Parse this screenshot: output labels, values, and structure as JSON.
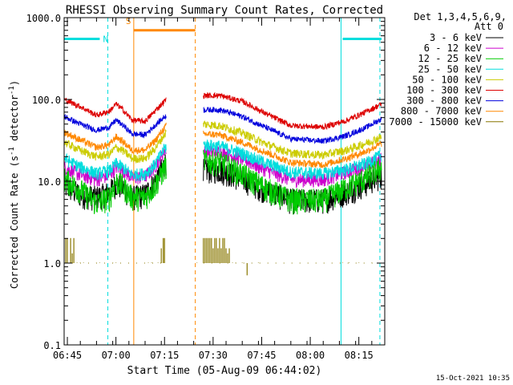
{
  "chart_data": {
    "type": "line",
    "title": "RHESSI Observing Summary Count Rates, Corrected",
    "xlabel": "Start Time (05-Aug-09 06:44:02)",
    "ylabel_main": "Corrected Count Rate (s",
    "ylabel_sup1": "-1",
    "ylabel_mid": " detector",
    "ylabel_sup2": "-1",
    "ylabel_end": ")",
    "yscale": "log",
    "ylim": [
      0.1,
      1000.0
    ],
    "xlim_minutes": [
      0,
      99
    ],
    "x_ticks": [
      {
        "label": "06:45",
        "min": 1
      },
      {
        "label": "07:00",
        "min": 16
      },
      {
        "label": "07:15",
        "min": 31
      },
      {
        "label": "07:30",
        "min": 46
      },
      {
        "label": "07:45",
        "min": 61
      },
      {
        "label": "08:00",
        "min": 76
      },
      {
        "label": "08:15",
        "min": 91
      }
    ],
    "y_ticks": [
      {
        "label": "1000.0",
        "value": 1000
      },
      {
        "label": "100.0",
        "value": 100
      },
      {
        "label": "10.0",
        "value": 10
      },
      {
        "label": "1.0",
        "value": 1
      },
      {
        "label": "0.1",
        "value": 0.1
      }
    ],
    "legend": {
      "header1": "Det 1,3,4,5,6,9,",
      "header2": "Att 0",
      "placement": "right"
    },
    "segments": [
      [
        0,
        31.5
      ],
      [
        43,
        98
      ]
    ],
    "series": [
      {
        "name": "3 - 6 keV",
        "color": "#000000",
        "noise": 0.35,
        "points": [
          [
            0,
            9
          ],
          [
            5,
            7
          ],
          [
            10,
            6.5
          ],
          [
            14,
            7.5
          ],
          [
            16,
            9.5
          ],
          [
            18,
            8.5
          ],
          [
            21,
            6.5
          ],
          [
            25,
            7
          ],
          [
            28,
            10
          ],
          [
            31.5,
            18
          ],
          [
            43,
            14
          ],
          [
            48,
            14
          ],
          [
            55,
            11
          ],
          [
            62,
            8
          ],
          [
            70,
            6
          ],
          [
            80,
            6
          ],
          [
            87,
            7.5
          ],
          [
            93,
            9.5
          ],
          [
            98,
            12
          ]
        ]
      },
      {
        "name": "6 - 12 keV",
        "color": "#cc00cc",
        "noise": 0.2,
        "points": [
          [
            0,
            15
          ],
          [
            5,
            12
          ],
          [
            10,
            10.5
          ],
          [
            14,
            12
          ],
          [
            16,
            15
          ],
          [
            18,
            14
          ],
          [
            21,
            11
          ],
          [
            25,
            11.5
          ],
          [
            28,
            15
          ],
          [
            31.5,
            26
          ],
          [
            43,
            23
          ],
          [
            48,
            23
          ],
          [
            55,
            19
          ],
          [
            62,
            14
          ],
          [
            70,
            10.5
          ],
          [
            80,
            10.5
          ],
          [
            87,
            13
          ],
          [
            93,
            15.5
          ],
          [
            98,
            19
          ]
        ]
      },
      {
        "name": "12 - 25 keV",
        "color": "#00cc00",
        "noise": 0.35,
        "points": [
          [
            0,
            11
          ],
          [
            5,
            8
          ],
          [
            10,
            5.5
          ],
          [
            14,
            6.5
          ],
          [
            16,
            10
          ],
          [
            18,
            9
          ],
          [
            21,
            6.5
          ],
          [
            25,
            6.5
          ],
          [
            28,
            9
          ],
          [
            31.5,
            16
          ],
          [
            43,
            18
          ],
          [
            48,
            17.5
          ],
          [
            55,
            12.5
          ],
          [
            62,
            8.5
          ],
          [
            70,
            6
          ],
          [
            80,
            6
          ],
          [
            87,
            8.5
          ],
          [
            93,
            11
          ],
          [
            98,
            15
          ]
        ]
      },
      {
        "name": "25 - 50 keV",
        "color": "#00dddd",
        "noise": 0.18,
        "points": [
          [
            0,
            19
          ],
          [
            5,
            15
          ],
          [
            10,
            12.5
          ],
          [
            14,
            13.5
          ],
          [
            16,
            16.5
          ],
          [
            18,
            15
          ],
          [
            21,
            12
          ],
          [
            25,
            12.5
          ],
          [
            28,
            16
          ],
          [
            31.5,
            27
          ],
          [
            43,
            28
          ],
          [
            48,
            27
          ],
          [
            55,
            22
          ],
          [
            62,
            17
          ],
          [
            70,
            13
          ],
          [
            80,
            12.5
          ],
          [
            87,
            14
          ],
          [
            93,
            16.5
          ],
          [
            98,
            21
          ]
        ]
      },
      {
        "name": "50 - 100 keV",
        "color": "#cccc00",
        "noise": 0.12,
        "points": [
          [
            0,
            30
          ],
          [
            5,
            24
          ],
          [
            10,
            20
          ],
          [
            14,
            21.5
          ],
          [
            16,
            26
          ],
          [
            18,
            24
          ],
          [
            21,
            19
          ],
          [
            25,
            19
          ],
          [
            28,
            25
          ],
          [
            31.5,
            40
          ],
          [
            43,
            50
          ],
          [
            48,
            48
          ],
          [
            55,
            39
          ],
          [
            62,
            29
          ],
          [
            70,
            22
          ],
          [
            80,
            21
          ],
          [
            87,
            24
          ],
          [
            93,
            29
          ],
          [
            98,
            35
          ]
        ]
      },
      {
        "name": "100 - 300 keV",
        "color": "#dd0000",
        "noise": 0.08,
        "points": [
          [
            0,
            100
          ],
          [
            5,
            82
          ],
          [
            10,
            64
          ],
          [
            14,
            72
          ],
          [
            16,
            88
          ],
          [
            18,
            76
          ],
          [
            21,
            56
          ],
          [
            25,
            54
          ],
          [
            28,
            72
          ],
          [
            31.5,
            100
          ],
          [
            43,
            112
          ],
          [
            48,
            112
          ],
          [
            55,
            95
          ],
          [
            62,
            68
          ],
          [
            70,
            48
          ],
          [
            80,
            46
          ],
          [
            87,
            55
          ],
          [
            93,
            70
          ],
          [
            98,
            88
          ]
        ]
      },
      {
        "name": "300 - 800 keV",
        "color": "#0000dd",
        "noise": 0.08,
        "points": [
          [
            0,
            62
          ],
          [
            5,
            50
          ],
          [
            10,
            42
          ],
          [
            14,
            46
          ],
          [
            16,
            56
          ],
          [
            18,
            49
          ],
          [
            21,
            38
          ],
          [
            25,
            37
          ],
          [
            28,
            48
          ],
          [
            31.5,
            64
          ],
          [
            43,
            75
          ],
          [
            48,
            75
          ],
          [
            55,
            62
          ],
          [
            62,
            46
          ],
          [
            70,
            33
          ],
          [
            80,
            31
          ],
          [
            87,
            36
          ],
          [
            93,
            45
          ],
          [
            98,
            58
          ]
        ]
      },
      {
        "name": "800 - 7000 keV",
        "color": "#ff8800",
        "noise": 0.1,
        "points": [
          [
            0,
            40
          ],
          [
            5,
            32
          ],
          [
            10,
            26
          ],
          [
            14,
            28
          ],
          [
            16,
            35
          ],
          [
            18,
            31
          ],
          [
            21,
            24
          ],
          [
            25,
            24
          ],
          [
            28,
            31
          ],
          [
            31.5,
            48
          ],
          [
            43,
            38
          ],
          [
            48,
            37
          ],
          [
            55,
            30
          ],
          [
            62,
            23
          ],
          [
            70,
            17
          ],
          [
            80,
            16
          ],
          [
            87,
            19
          ],
          [
            93,
            23
          ],
          [
            98,
            29
          ]
        ]
      },
      {
        "name": "7000 - 15000 keV",
        "color": "#887700",
        "noise": 0,
        "points": []
      }
    ],
    "bar_annotations": [
      {
        "label": "N",
        "color": "#00dddd",
        "start": 0,
        "end": 11,
        "level": 550
      },
      {
        "label": "",
        "color": "#00dddd",
        "start": 86,
        "end": 98,
        "level": 550
      },
      {
        "label": "S",
        "color": "#ff8800",
        "start": 21.5,
        "end": 40.5,
        "level": 700
      }
    ],
    "vertical_lines": [
      {
        "color": "#00dddd",
        "x": 0,
        "dashed": false
      },
      {
        "color": "#00dddd",
        "x": 13.5,
        "dashed": true
      },
      {
        "color": "#ff8800",
        "x": 21.5,
        "dashed": false
      },
      {
        "color": "#ff8800",
        "x": 40.5,
        "dashed": true
      },
      {
        "color": "#00dddd",
        "x": 85.5,
        "dashed": false
      },
      {
        "color": "#00dddd",
        "x": 97.5,
        "dashed": true
      }
    ],
    "timestamp": "15-Oct-2021 10:35"
  }
}
